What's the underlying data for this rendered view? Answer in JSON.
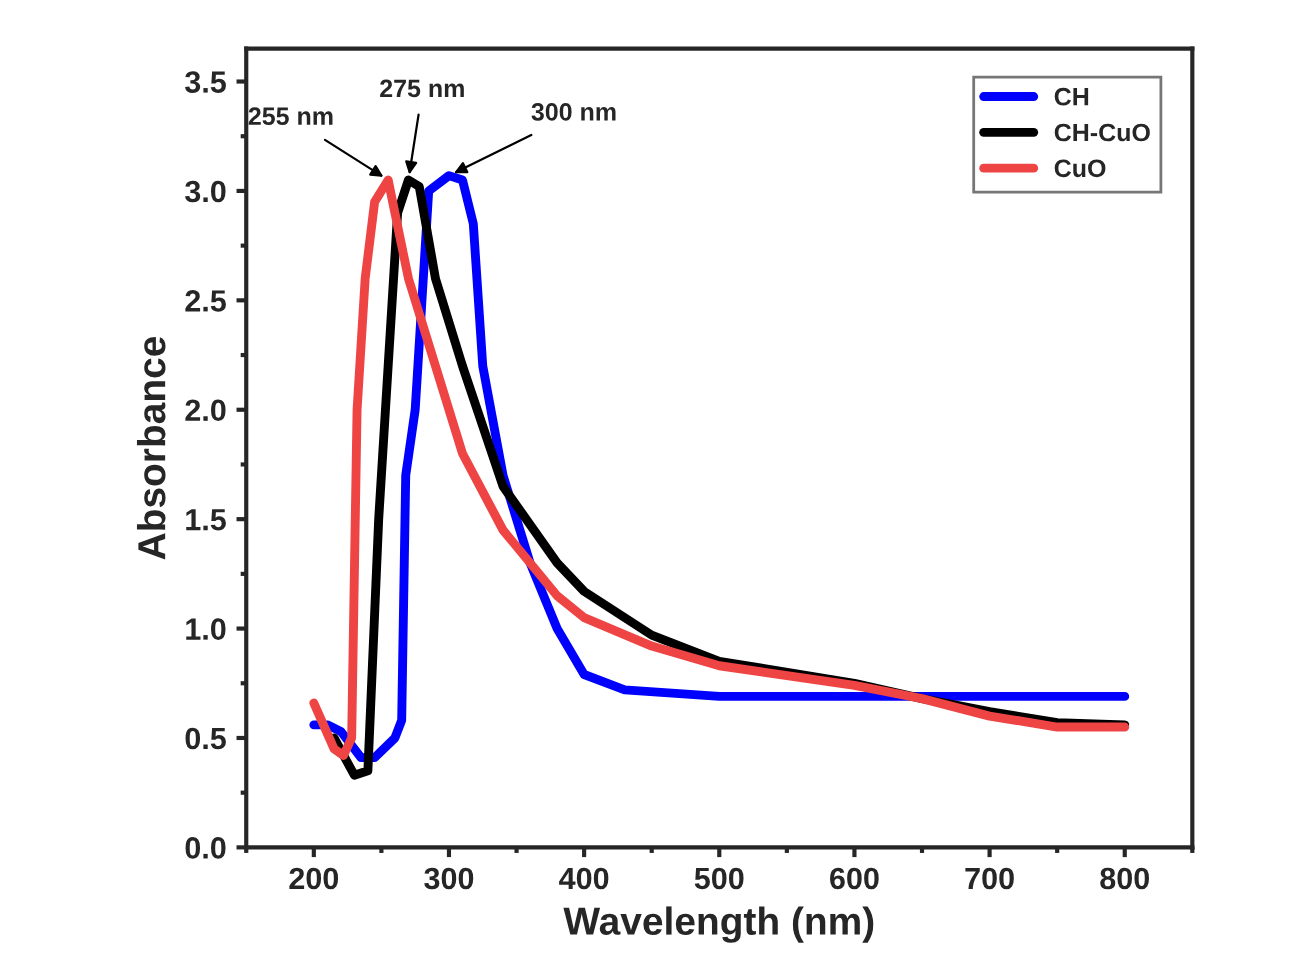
{
  "chart_data": {
    "type": "line",
    "xlabel": "Wavelength (nm)",
    "ylabel": "Absorbance",
    "xlim": [
      150,
      850
    ],
    "xticks": [
      200,
      300,
      400,
      500,
      600,
      700,
      800
    ],
    "ylim": [
      0,
      3.65
    ],
    "yticks": [
      {
        "value": 0,
        "label": "0.0"
      },
      0.5,
      {
        "value": 1,
        "label": "1.0"
      },
      1.5,
      {
        "value": 2,
        "label": "2.0"
      },
      2.5,
      {
        "value": 3,
        "label": "3.0"
      },
      3.5
    ],
    "grid": false,
    "legend": "top right",
    "marker": "none",
    "line_style": "solid",
    "series": [
      {
        "name": "CH",
        "color": "#0000ff",
        "x": [
          200,
          210,
          220,
          235,
          245,
          260,
          265,
          268,
          275,
          285,
          300,
          310,
          318,
          325,
          340,
          360,
          380,
          400,
          430,
          500,
          800
        ],
        "values": [
          0.56,
          0.56,
          0.53,
          0.41,
          0.41,
          0.5,
          0.58,
          1.7,
          2.0,
          3.0,
          3.07,
          3.05,
          2.85,
          2.2,
          1.7,
          1.3,
          1.0,
          0.79,
          0.72,
          0.69,
          0.69
        ]
      },
      {
        "name": "CH-CuO",
        "color": "#000000",
        "x": [
          215,
          230,
          240,
          248,
          255,
          262,
          270,
          278,
          290,
          310,
          340,
          380,
          400,
          450,
          500,
          600,
          650,
          700,
          750,
          800
        ],
        "values": [
          0.5,
          0.33,
          0.35,
          1.5,
          2.2,
          2.9,
          3.05,
          3.02,
          2.6,
          2.2,
          1.65,
          1.3,
          1.17,
          0.97,
          0.85,
          0.75,
          0.68,
          0.62,
          0.57,
          0.56
        ]
      },
      {
        "name": "CuO",
        "color": "#ef4444",
        "x": [
          200,
          215,
          222,
          228,
          232,
          238,
          245,
          255,
          260,
          270,
          290,
          310,
          340,
          380,
          400,
          450,
          500,
          600,
          650,
          700,
          750,
          800
        ],
        "values": [
          0.66,
          0.45,
          0.42,
          0.5,
          2.0,
          2.6,
          2.95,
          3.05,
          2.9,
          2.6,
          2.2,
          1.8,
          1.45,
          1.15,
          1.05,
          0.92,
          0.83,
          0.74,
          0.68,
          0.6,
          0.55,
          0.55
        ]
      }
    ],
    "annotations": [
      {
        "text": "255 nm",
        "x": 255,
        "y": 3.05
      },
      {
        "text": "275 nm",
        "x": 270,
        "y": 3.05
      },
      {
        "text": "300 nm",
        "x": 300,
        "y": 3.07
      }
    ]
  }
}
